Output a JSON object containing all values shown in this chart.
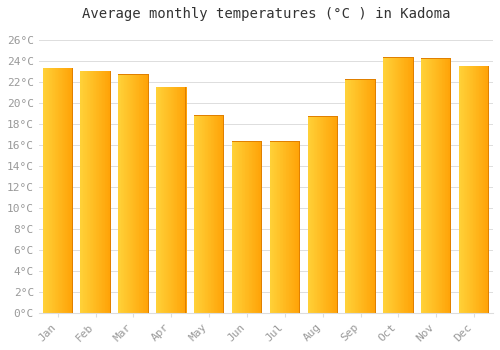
{
  "title": "Average monthly temperatures (°C ) in Kadoma",
  "months": [
    "Jan",
    "Feb",
    "Mar",
    "Apr",
    "May",
    "Jun",
    "Jul",
    "Aug",
    "Sep",
    "Oct",
    "Nov",
    "Dec"
  ],
  "values": [
    23.3,
    23.0,
    22.7,
    21.5,
    18.8,
    16.3,
    16.3,
    18.7,
    22.2,
    24.3,
    24.2,
    23.5
  ],
  "bar_color_light": "#FFD050",
  "bar_color_dark": "#FFA000",
  "bar_edge_color": "#E08000",
  "background_color": "#FFFFFF",
  "grid_color": "#DDDDDD",
  "text_color": "#999999",
  "ylim": [
    0,
    27
  ],
  "yticks": [
    0,
    2,
    4,
    6,
    8,
    10,
    12,
    14,
    16,
    18,
    20,
    22,
    24,
    26
  ],
  "title_fontsize": 10,
  "tick_fontsize": 8,
  "bar_width": 0.8
}
